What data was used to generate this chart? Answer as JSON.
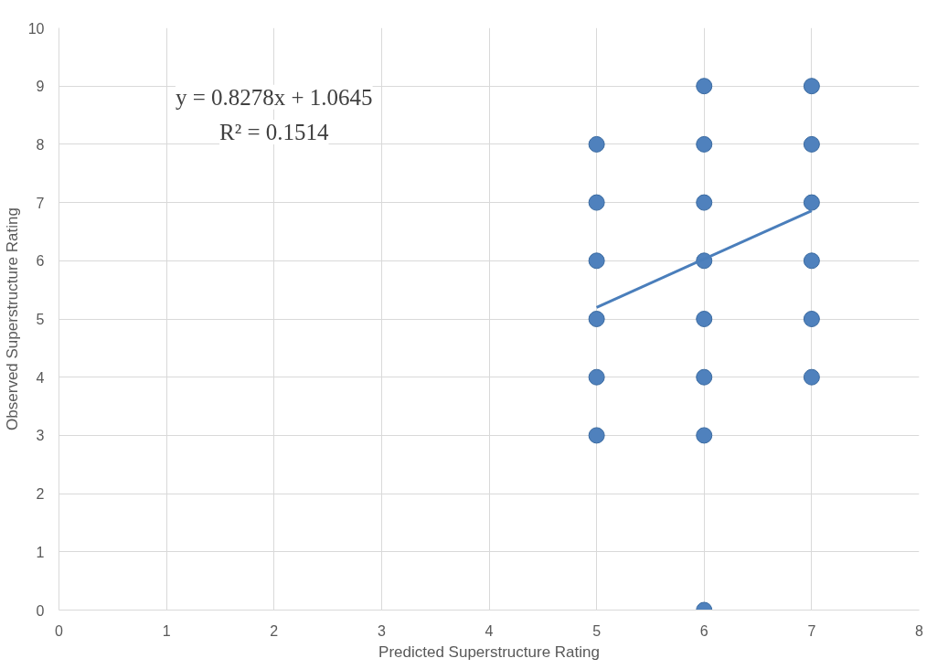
{
  "chart_data": {
    "type": "scatter",
    "xlabel": "Predicted Superstructure Rating",
    "ylabel": "Observed Superstructure Rating",
    "xlim": [
      0,
      8
    ],
    "xticks": [
      0,
      1,
      2,
      3,
      4,
      5,
      6,
      7,
      8
    ],
    "ylim": [
      0,
      10
    ],
    "yticks": [
      0,
      1,
      2,
      3,
      4,
      5,
      6,
      7,
      8,
      9,
      10
    ],
    "grid": true,
    "annotations": [
      "y = 0.8278x + 1.0645",
      "R² = 0.1514"
    ],
    "series": [
      {
        "marker": "circle",
        "color": "#4f81bd",
        "x": [
          5,
          5,
          5,
          5,
          5,
          5,
          6,
          6,
          6,
          6,
          6,
          6,
          6,
          6,
          7,
          7,
          7,
          7,
          7,
          7
        ],
        "values": [
          3,
          4,
          5,
          6,
          7,
          8,
          0,
          3,
          4,
          5,
          6,
          7,
          8,
          9,
          4,
          5,
          6,
          7,
          8,
          9
        ]
      },
      {
        "type": "line",
        "marker": "none",
        "color": "#4a7ebb",
        "x": [
          5,
          7
        ],
        "values": [
          5.2,
          6.86
        ]
      }
    ]
  }
}
